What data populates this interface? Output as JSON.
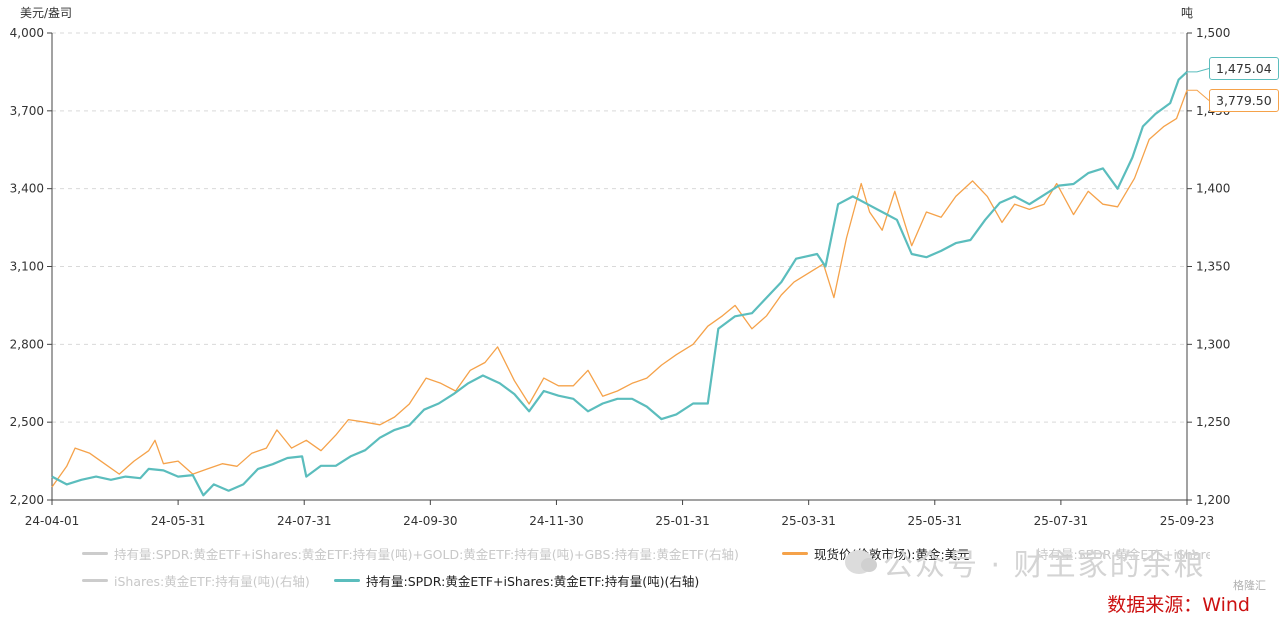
{
  "axis_titles": {
    "left": "美元/盎司",
    "right": "吨"
  },
  "legend": [
    {
      "label": "持有量:SPDR:黄金ETF+iShares:黄金ETF:持有量(吨)+GOLD:黄金ETF:持有量(吨)+GBS:持有量:黄金ETF(右轴)",
      "color": "#cccccc",
      "state": "disabled"
    },
    {
      "label": "现货价(伦敦市场):黄金:美元",
      "color": "#f5a24a",
      "state": "active"
    },
    {
      "label": "持有量:SPDR:黄金ETF+iShares:黄金ETF:持有量(吨)(右轴)",
      "color": "#cccccc",
      "state": "disabled"
    },
    {
      "label": "iShares:黄金ETF:持有量(吨)(右轴)",
      "color": "#cccccc",
      "state": "disabled"
    },
    {
      "label": "持有量:SPDR:黄金ETF+iShares:黄金ETF:持有量(吨)(右轴)",
      "color": "#5bbdbd",
      "state": "active"
    }
  ],
  "watermark": "公众号 · 财主家的余粮",
  "logo_text": "格隆汇",
  "source": "数据来源：Wind",
  "chart_data": {
    "type": "line",
    "x_ticks": [
      "24-04-01",
      "24-05-31",
      "24-07-31",
      "24-09-30",
      "24-11-30",
      "25-01-31",
      "25-03-31",
      "25-05-31",
      "25-07-31",
      "25-09-23"
    ],
    "x_range": [
      "2024-04-01",
      "2025-09-23"
    ],
    "y_left": {
      "range": [
        2200,
        4000
      ],
      "ticks": [
        "2,200",
        "2,500",
        "2,800",
        "3,100",
        "3,400",
        "3,700",
        "4,000"
      ]
    },
    "y_right": {
      "range": [
        1200,
        1500
      ],
      "ticks": [
        "1,200",
        "1,250",
        "1,300",
        "1,350",
        "1,400",
        "1,450",
        "1,500"
      ]
    },
    "grid": "horizontal-dashed",
    "series": [
      {
        "name": "现货价(伦敦市场):黄金:美元",
        "axis": "left",
        "color": "#f5a24a",
        "last_label": "3,779.50",
        "points": [
          [
            "2024-04-01",
            2250
          ],
          [
            "2024-04-08",
            2330
          ],
          [
            "2024-04-12",
            2400
          ],
          [
            "2024-04-19",
            2380
          ],
          [
            "2024-04-26",
            2340
          ],
          [
            "2024-05-03",
            2300
          ],
          [
            "2024-05-10",
            2350
          ],
          [
            "2024-05-17",
            2390
          ],
          [
            "2024-05-20",
            2430
          ],
          [
            "2024-05-24",
            2340
          ],
          [
            "2024-05-31",
            2350
          ],
          [
            "2024-06-07",
            2300
          ],
          [
            "2024-06-14",
            2320
          ],
          [
            "2024-06-21",
            2340
          ],
          [
            "2024-06-28",
            2330
          ],
          [
            "2024-07-05",
            2380
          ],
          [
            "2024-07-12",
            2400
          ],
          [
            "2024-07-17",
            2470
          ],
          [
            "2024-07-24",
            2400
          ],
          [
            "2024-07-31",
            2430
          ],
          [
            "2024-08-07",
            2390
          ],
          [
            "2024-08-14",
            2450
          ],
          [
            "2024-08-20",
            2510
          ],
          [
            "2024-08-28",
            2500
          ],
          [
            "2024-09-04",
            2490
          ],
          [
            "2024-09-11",
            2520
          ],
          [
            "2024-09-18",
            2570
          ],
          [
            "2024-09-26",
            2670
          ],
          [
            "2024-10-03",
            2650
          ],
          [
            "2024-10-10",
            2620
          ],
          [
            "2024-10-17",
            2700
          ],
          [
            "2024-10-24",
            2730
          ],
          [
            "2024-10-30",
            2790
          ],
          [
            "2024-11-07",
            2660
          ],
          [
            "2024-11-14",
            2570
          ],
          [
            "2024-11-21",
            2670
          ],
          [
            "2024-11-28",
            2640
          ],
          [
            "2024-12-05",
            2640
          ],
          [
            "2024-12-12",
            2700
          ],
          [
            "2024-12-19",
            2600
          ],
          [
            "2024-12-26",
            2620
          ],
          [
            "2025-01-02",
            2650
          ],
          [
            "2025-01-09",
            2670
          ],
          [
            "2025-01-16",
            2720
          ],
          [
            "2025-01-23",
            2760
          ],
          [
            "2025-01-31",
            2800
          ],
          [
            "2025-02-07",
            2870
          ],
          [
            "2025-02-14",
            2910
          ],
          [
            "2025-02-20",
            2950
          ],
          [
            "2025-02-28",
            2860
          ],
          [
            "2025-03-07",
            2910
          ],
          [
            "2025-03-14",
            2990
          ],
          [
            "2025-03-20",
            3040
          ],
          [
            "2025-03-28",
            3080
          ],
          [
            "2025-04-03",
            3110
          ],
          [
            "2025-04-08",
            2980
          ],
          [
            "2025-04-14",
            3210
          ],
          [
            "2025-04-21",
            3420
          ],
          [
            "2025-04-25",
            3310
          ],
          [
            "2025-05-01",
            3240
          ],
          [
            "2025-05-07",
            3390
          ],
          [
            "2025-05-15",
            3180
          ],
          [
            "2025-05-22",
            3310
          ],
          [
            "2025-05-29",
            3290
          ],
          [
            "2025-06-05",
            3370
          ],
          [
            "2025-06-13",
            3430
          ],
          [
            "2025-06-20",
            3370
          ],
          [
            "2025-06-27",
            3270
          ],
          [
            "2025-07-03",
            3340
          ],
          [
            "2025-07-10",
            3320
          ],
          [
            "2025-07-17",
            3340
          ],
          [
            "2025-07-23",
            3420
          ],
          [
            "2025-07-31",
            3300
          ],
          [
            "2025-08-07",
            3390
          ],
          [
            "2025-08-14",
            3340
          ],
          [
            "2025-08-21",
            3330
          ],
          [
            "2025-08-29",
            3440
          ],
          [
            "2025-09-05",
            3590
          ],
          [
            "2025-09-12",
            3640
          ],
          [
            "2025-09-18",
            3670
          ],
          [
            "2025-09-23",
            3779.5
          ]
        ]
      },
      {
        "name": "持有量:SPDR:黄金ETF+iShares:黄金ETF:持有量(吨)(右轴)",
        "axis": "right",
        "color": "#5bbdbd",
        "last_label": "1,475.04",
        "points": [
          [
            "2024-04-01",
            1215
          ],
          [
            "2024-04-08",
            1210
          ],
          [
            "2024-04-15",
            1213
          ],
          [
            "2024-04-22",
            1215
          ],
          [
            "2024-04-29",
            1213
          ],
          [
            "2024-05-06",
            1215
          ],
          [
            "2024-05-13",
            1214
          ],
          [
            "2024-05-17",
            1220
          ],
          [
            "2024-05-24",
            1219
          ],
          [
            "2024-05-31",
            1215
          ],
          [
            "2024-06-07",
            1216
          ],
          [
            "2024-06-12",
            1203
          ],
          [
            "2024-06-17",
            1210
          ],
          [
            "2024-06-24",
            1206
          ],
          [
            "2024-07-01",
            1210
          ],
          [
            "2024-07-08",
            1220
          ],
          [
            "2024-07-15",
            1223
          ],
          [
            "2024-07-22",
            1227
          ],
          [
            "2024-07-29",
            1228
          ],
          [
            "2024-07-31",
            1215
          ],
          [
            "2024-08-07",
            1222
          ],
          [
            "2024-08-14",
            1222
          ],
          [
            "2024-08-21",
            1228
          ],
          [
            "2024-08-28",
            1232
          ],
          [
            "2024-09-04",
            1240
          ],
          [
            "2024-09-11",
            1245
          ],
          [
            "2024-09-18",
            1248
          ],
          [
            "2024-09-25",
            1258
          ],
          [
            "2024-10-02",
            1262
          ],
          [
            "2024-10-09",
            1268
          ],
          [
            "2024-10-16",
            1275
          ],
          [
            "2024-10-23",
            1280
          ],
          [
            "2024-10-31",
            1275
          ],
          [
            "2024-11-07",
            1268
          ],
          [
            "2024-11-14",
            1257
          ],
          [
            "2024-11-21",
            1270
          ],
          [
            "2024-11-28",
            1267
          ],
          [
            "2024-12-05",
            1265
          ],
          [
            "2024-12-12",
            1257
          ],
          [
            "2024-12-19",
            1262
          ],
          [
            "2024-12-26",
            1265
          ],
          [
            "2025-01-02",
            1265
          ],
          [
            "2025-01-09",
            1260
          ],
          [
            "2025-01-16",
            1252
          ],
          [
            "2025-01-23",
            1255
          ],
          [
            "2025-01-31",
            1262
          ],
          [
            "2025-02-07",
            1262
          ],
          [
            "2025-02-12",
            1310
          ],
          [
            "2025-02-20",
            1318
          ],
          [
            "2025-02-28",
            1320
          ],
          [
            "2025-03-07",
            1330
          ],
          [
            "2025-03-14",
            1340
          ],
          [
            "2025-03-21",
            1355
          ],
          [
            "2025-03-31",
            1358
          ],
          [
            "2025-04-04",
            1350
          ],
          [
            "2025-04-10",
            1390
          ],
          [
            "2025-04-17",
            1395
          ],
          [
            "2025-04-24",
            1390
          ],
          [
            "2025-05-01",
            1385
          ],
          [
            "2025-05-08",
            1380
          ],
          [
            "2025-05-15",
            1358
          ],
          [
            "2025-05-22",
            1356
          ],
          [
            "2025-05-29",
            1360
          ],
          [
            "2025-06-05",
            1365
          ],
          [
            "2025-06-12",
            1367
          ],
          [
            "2025-06-19",
            1380
          ],
          [
            "2025-06-26",
            1391
          ],
          [
            "2025-07-03",
            1395
          ],
          [
            "2025-07-10",
            1390
          ],
          [
            "2025-07-17",
            1396
          ],
          [
            "2025-07-24",
            1402
          ],
          [
            "2025-07-31",
            1403
          ],
          [
            "2025-08-07",
            1410
          ],
          [
            "2025-08-14",
            1413
          ],
          [
            "2025-08-21",
            1400
          ],
          [
            "2025-08-28",
            1420
          ],
          [
            "2025-09-02",
            1440
          ],
          [
            "2025-09-08",
            1448
          ],
          [
            "2025-09-15",
            1455
          ],
          [
            "2025-09-19",
            1470
          ],
          [
            "2025-09-23",
            1475.04
          ]
        ]
      }
    ]
  }
}
